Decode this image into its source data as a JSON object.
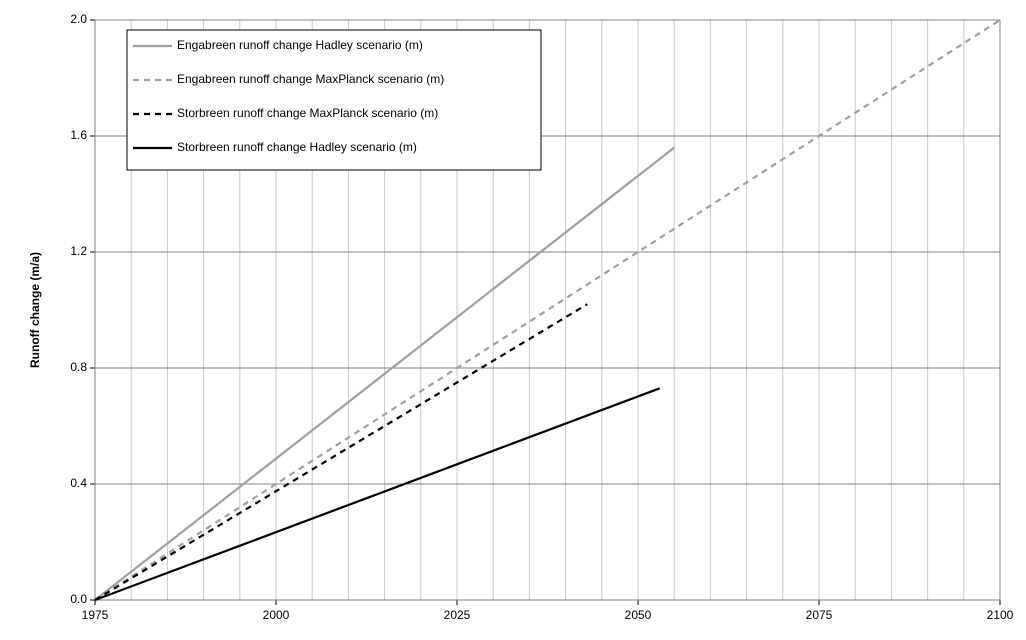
{
  "chart_data": {
    "type": "line",
    "y_label": "Runoff change (m/a)",
    "xlim": [
      1975,
      2100
    ],
    "xticks": [
      1975,
      2000,
      2025,
      2050,
      2075,
      2100
    ],
    "x_minor_ticks": [
      1980,
      1985,
      1990,
      1995,
      2005,
      2010,
      2015,
      2020,
      2030,
      2035,
      2040,
      2045,
      2055,
      2060,
      2065,
      2070,
      2080,
      2085,
      2090,
      2095
    ],
    "ylim": [
      0,
      2
    ],
    "yticks": [
      {
        "value": 0,
        "label": "0.0"
      },
      0.4,
      0.8,
      1.2,
      1.6,
      {
        "value": 2,
        "label": "2.0"
      }
    ],
    "grid": true,
    "legend": "top-left",
    "series": [
      {
        "name": "Engabreen runoff change Hadley scenario (m)",
        "color": "#a0a0a0",
        "dash": false,
        "x": [
          1975,
          2055
        ],
        "values": [
          0,
          1.56
        ]
      },
      {
        "name": "Engabreen runoff change MaxPlanck scenario (m)",
        "color": "#a0a0a0",
        "dash": true,
        "x": [
          1975,
          2100
        ],
        "values": [
          0,
          2
        ]
      },
      {
        "name": "Storbreen runoff change MaxPlanck scenario (m)",
        "color": "#000000",
        "dash": true,
        "x": [
          1975,
          2043
        ],
        "values": [
          0,
          1.02
        ]
      },
      {
        "name": "Storbreen runoff change Hadley scenario (m)",
        "color": "#000000",
        "dash": false,
        "x": [
          1975,
          2053
        ],
        "values": [
          0,
          0.73
        ]
      }
    ]
  }
}
